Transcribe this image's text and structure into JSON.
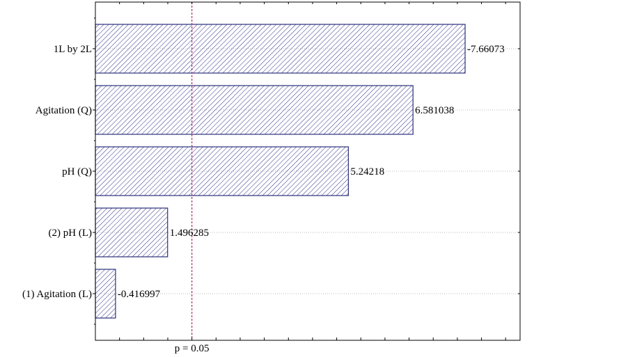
{
  "chart_data": {
    "type": "bar",
    "orientation": "horizontal",
    "categories": [
      "1L by 2L",
      "Agitation (Q)",
      "pH (Q)",
      "(2) pH (L)",
      "(1) Agitation (L)"
    ],
    "values": [
      7.66073,
      6.581038,
      5.24218,
      1.496285,
      0.416997
    ],
    "data_labels": [
      "-7.66073",
      "6.581038",
      "5.24218",
      "1.496285",
      "-0.416997"
    ],
    "reference_line": {
      "value": 2.0,
      "label": "p = 0.05"
    },
    "xlim": [
      0,
      8.8
    ],
    "grid": "horizontal dotted",
    "colors": {
      "bar_edge": "#2b2f7a",
      "hatch": "#3b3f8f",
      "reference": "#b0306a",
      "axis": "#000000"
    }
  }
}
